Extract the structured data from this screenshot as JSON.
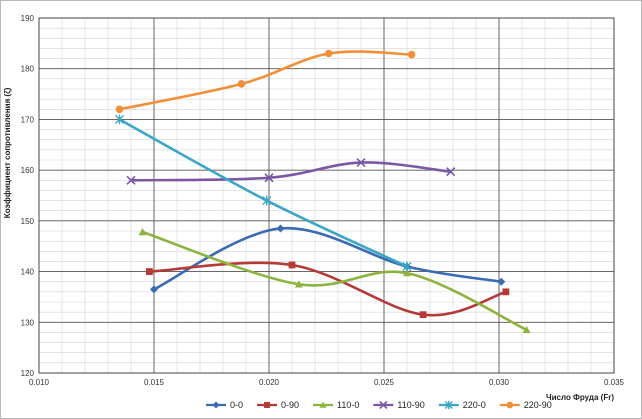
{
  "chart_data": {
    "type": "line",
    "title": "",
    "xlabel": "Число Фруда (Fr)",
    "ylabel": "Коэффициент сопротивления (ζ)",
    "xlim": [
      0.01,
      0.035
    ],
    "ylim": [
      120,
      190
    ],
    "x_ticks": [
      "0.010",
      "0.015",
      "0.020",
      "0.025",
      "0.030",
      "0.035"
    ],
    "y_ticks": [
      "120",
      "130",
      "140",
      "150",
      "160",
      "170",
      "180",
      "190"
    ],
    "x_tick_values": [
      0.01,
      0.015,
      0.02,
      0.025,
      0.03,
      0.035
    ],
    "y_tick_values": [
      120,
      130,
      140,
      150,
      160,
      170,
      180,
      190
    ],
    "grid": true,
    "smooth": true,
    "legend_position": "bottom",
    "series": [
      {
        "name": "0-0",
        "color": "#3a6cb4",
        "marker": "diamond",
        "x": [
          0.015,
          0.0205,
          0.026,
          0.0301
        ],
        "y": [
          136.5,
          148.5,
          141.0,
          138.0
        ]
      },
      {
        "name": "0-90",
        "color": "#b33a36",
        "marker": "square",
        "x": [
          0.0148,
          0.021,
          0.0267,
          0.0303
        ],
        "y": [
          140.0,
          141.3,
          131.5,
          136.0
        ]
      },
      {
        "name": "110-0",
        "color": "#8db33e",
        "marker": "triangle",
        "x": [
          0.0145,
          0.0213,
          0.026,
          0.0312
        ],
        "y": [
          147.8,
          137.5,
          139.7,
          128.5
        ]
      },
      {
        "name": "110-90",
        "color": "#7a58a4",
        "marker": "x",
        "x": [
          0.014,
          0.02,
          0.024,
          0.0279
        ],
        "y": [
          158.0,
          158.5,
          161.5,
          159.7
        ]
      },
      {
        "name": "220-0",
        "color": "#3ba6c5",
        "marker": "star",
        "x": [
          0.0135,
          0.0199,
          0.026
        ],
        "y": [
          170.0,
          154.0,
          141.0
        ]
      },
      {
        "name": "220-90",
        "color": "#f0913a",
        "marker": "circle",
        "x": [
          0.0135,
          0.0188,
          0.0226,
          0.0262
        ],
        "y": [
          172.0,
          177.0,
          183.0,
          182.8
        ]
      }
    ]
  }
}
